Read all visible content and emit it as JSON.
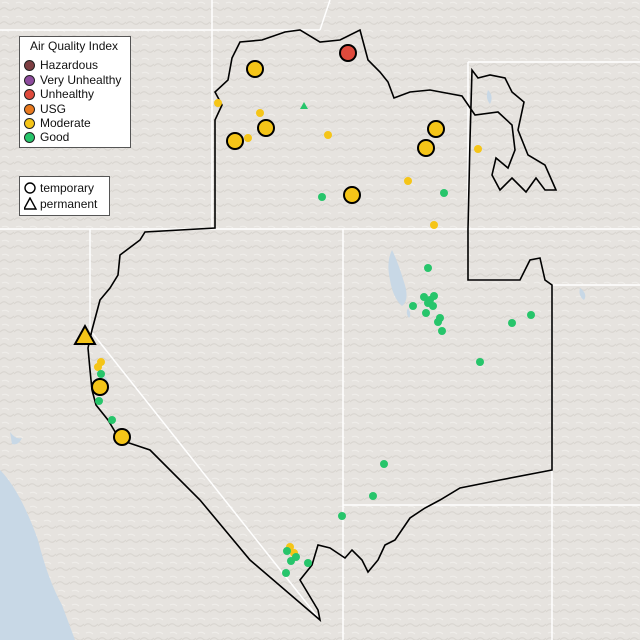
{
  "legend_aqi": {
    "title": "Air Quality Index",
    "items": [
      {
        "label": "Hazardous",
        "color": "#7e3f42",
        "icon": "circle"
      },
      {
        "label": "Very Unhealthy",
        "color": "#8e4c9e",
        "icon": "circle"
      },
      {
        "label": "Unhealthy",
        "color": "#df4a3c",
        "icon": "circle"
      },
      {
        "label": "USG",
        "color": "#ea7a1e",
        "icon": "circle"
      },
      {
        "label": "Moderate",
        "color": "#f5c518",
        "icon": "circle"
      },
      {
        "label": "Good",
        "color": "#27c56b",
        "icon": "circle"
      }
    ]
  },
  "legend_type": {
    "items": [
      {
        "label": "temporary",
        "icon": "circle-outline-icon"
      },
      {
        "label": "permanent",
        "icon": "triangle-outline-icon"
      }
    ]
  },
  "colors": {
    "land": "#e6e3df",
    "water": "#c8d8e6",
    "region_border": "#000000",
    "state_border": "#ffffff"
  }
}
